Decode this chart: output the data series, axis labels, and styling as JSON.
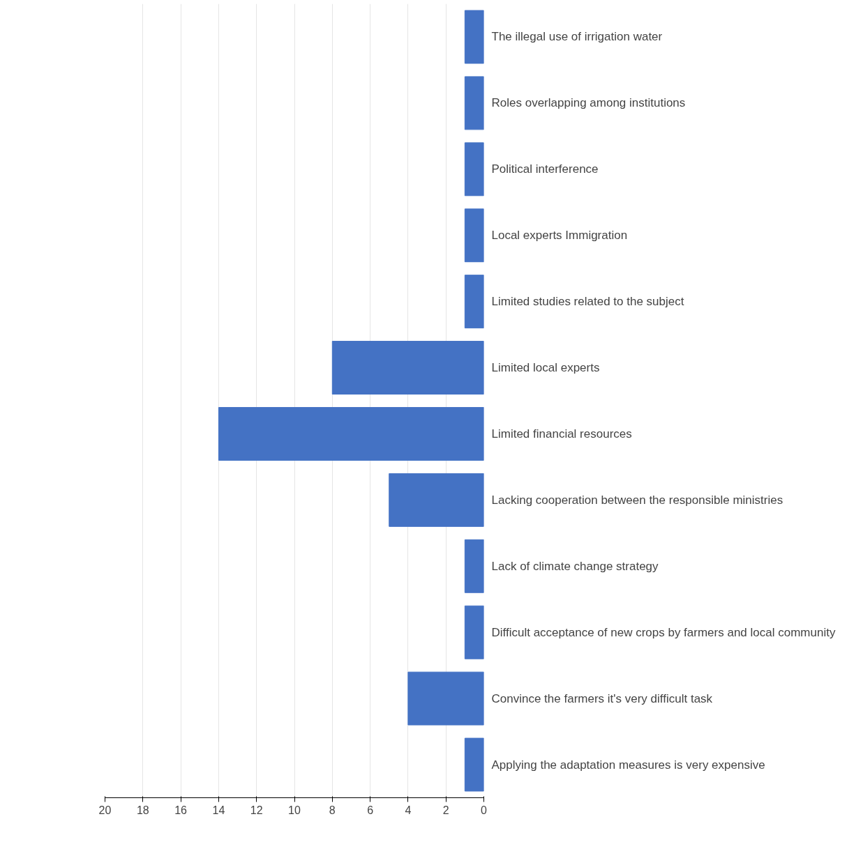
{
  "chart_data": {
    "type": "bar",
    "orientation": "horizontal",
    "categories": [
      "The illegal use of irrigation water",
      "Roles overlapping among institutions",
      "Political interference",
      "Local experts Immigration",
      "Limited studies related to the subject",
      "Limited local experts",
      "Limited financial resources",
      "Lacking cooperation between the responsible ministries",
      "Lack of climate change strategy",
      "Difficult acceptance of new crops by farmers and local community",
      "Convince the farmers it's very difficult task",
      "Applying the adaptation measures is very expensive"
    ],
    "values": [
      1,
      1,
      1,
      1,
      1,
      8,
      14,
      5,
      1,
      1,
      4,
      1
    ],
    "color": "#4472c4",
    "xlim": [
      20,
      0
    ],
    "xticks": [
      20,
      18,
      16,
      14,
      12,
      10,
      8,
      6,
      4,
      2,
      0
    ],
    "grid": "x"
  }
}
